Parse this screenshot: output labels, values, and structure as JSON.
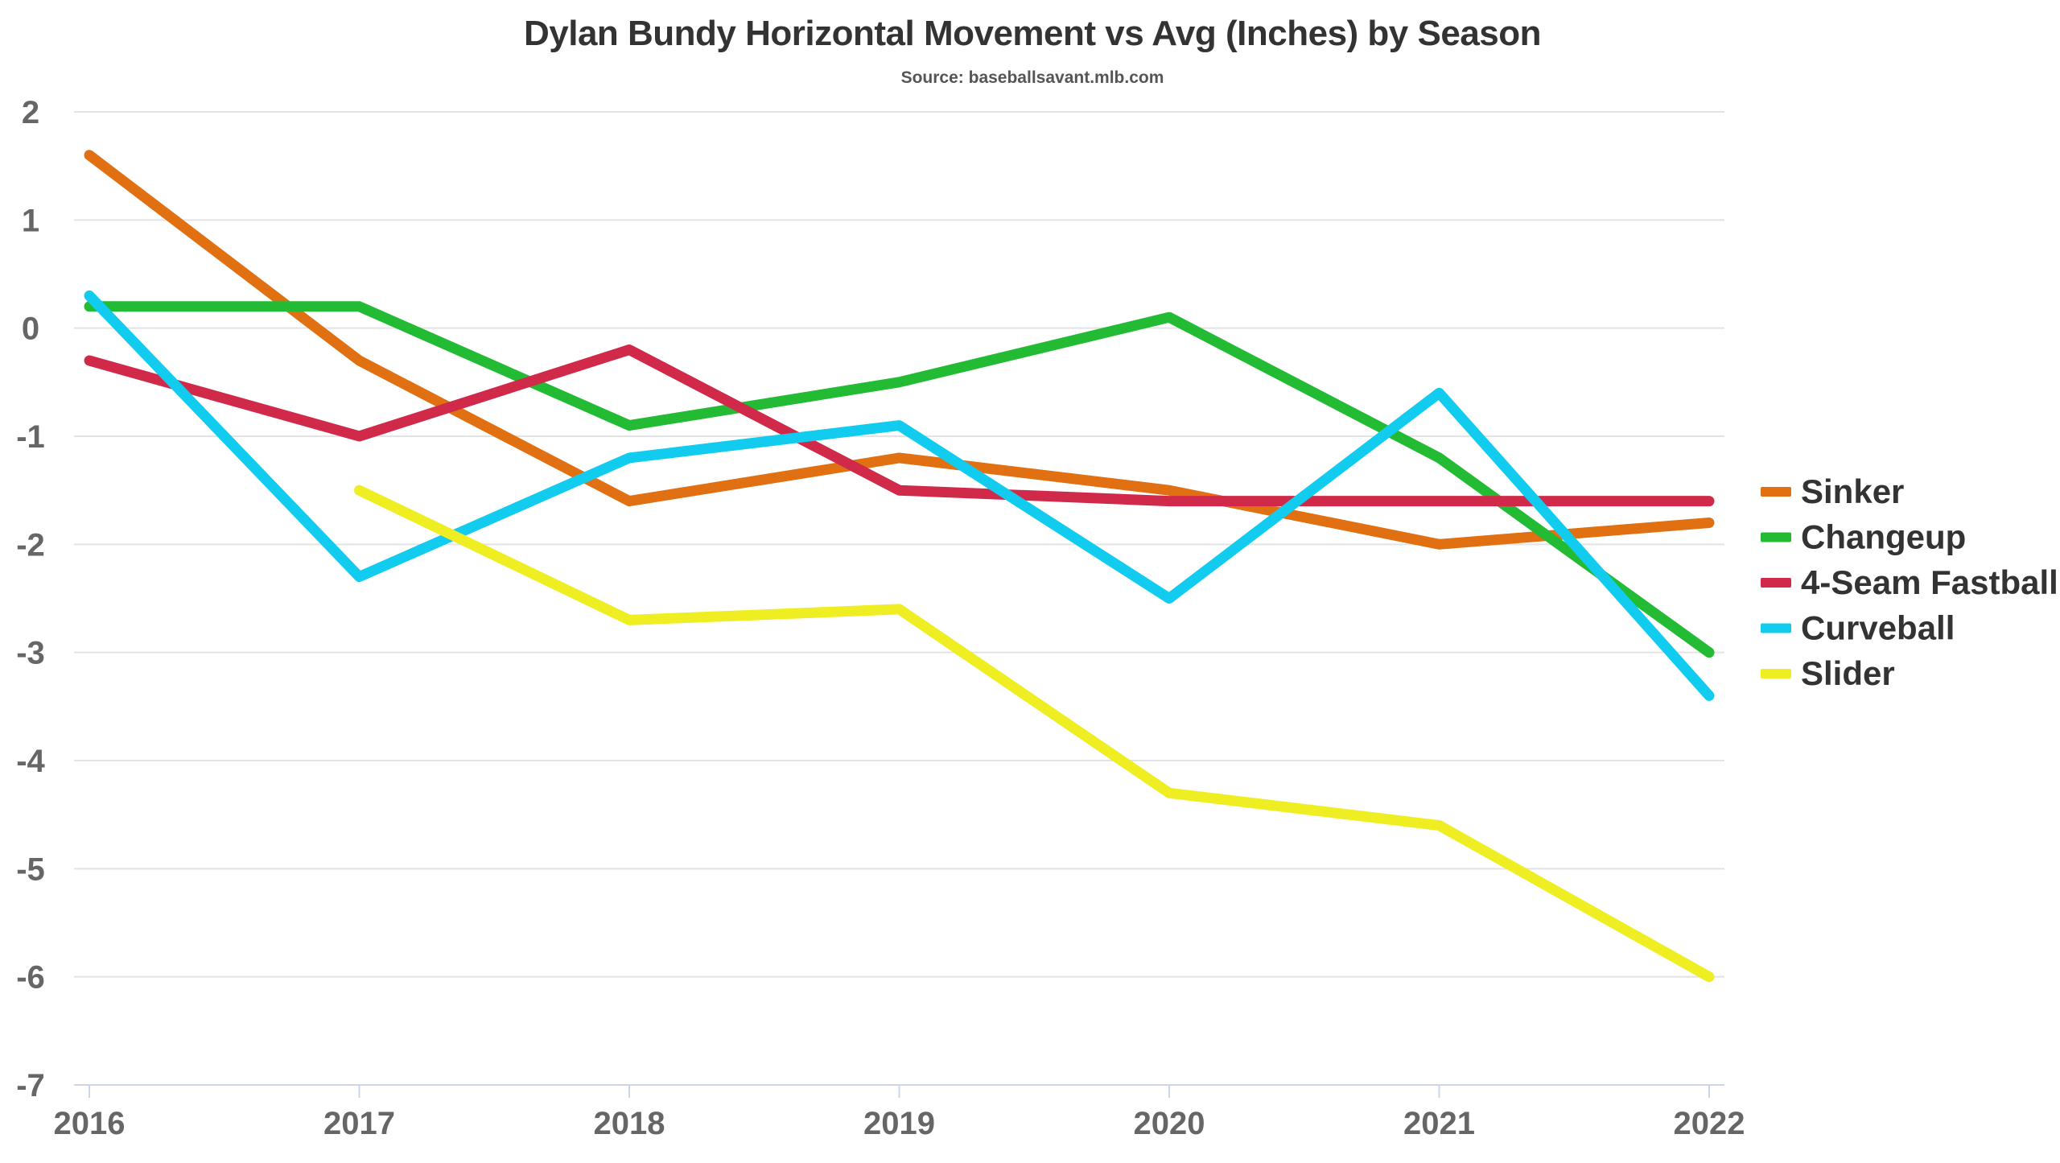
{
  "chart_data": {
    "type": "line",
    "title": "Dylan Bundy Horizontal Movement vs Avg (Inches) by Season",
    "subtitle": "Source: baseballsavant.mlb.com",
    "xlabel": "",
    "ylabel": "",
    "categories": [
      "2016",
      "2017",
      "2018",
      "2019",
      "2020",
      "2021",
      "2022"
    ],
    "ylim": [
      -7,
      2
    ],
    "yticks": [
      2,
      1,
      0,
      -1,
      -2,
      -3,
      -4,
      -5,
      -6,
      -7
    ],
    "grid": true,
    "legend_position": "right",
    "series": [
      {
        "name": "Sinker",
        "color": "#e07012",
        "values": [
          1.6,
          -0.3,
          -1.6,
          -1.2,
          -1.5,
          -2.0,
          -1.8
        ]
      },
      {
        "name": "Changeup",
        "color": "#22bb33",
        "values": [
          0.2,
          0.2,
          -0.9,
          -0.5,
          0.1,
          -1.2,
          -3.0
        ]
      },
      {
        "name": "4-Seam Fastball",
        "color": "#d0294a",
        "values": [
          -0.3,
          -1.0,
          -0.2,
          -1.5,
          -1.6,
          -1.6,
          -1.6
        ]
      },
      {
        "name": "Curveball",
        "color": "#11ccee",
        "values": [
          0.3,
          -2.3,
          -1.2,
          -0.9,
          -2.5,
          -0.6,
          -3.4
        ]
      },
      {
        "name": "Slider",
        "color": "#eeee22",
        "values": [
          null,
          -1.5,
          -2.7,
          -2.6,
          -4.3,
          -4.6,
          -6.0
        ]
      }
    ]
  }
}
